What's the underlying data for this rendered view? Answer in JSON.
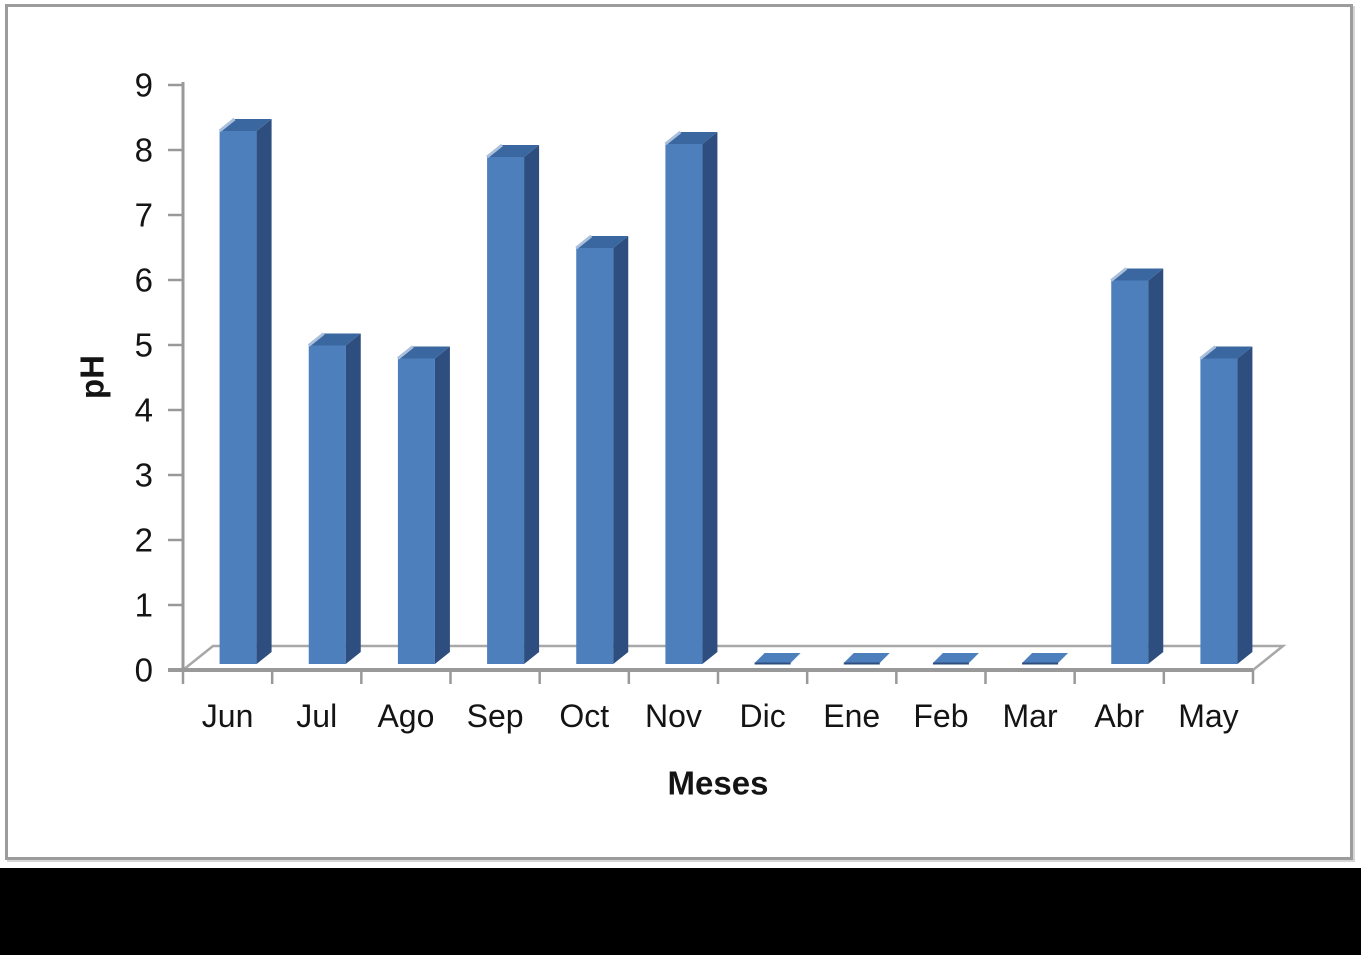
{
  "page": {
    "background_color": "#ffffff",
    "bottom_bar_color": "#000000",
    "frame_border_color": "#9c9c9c"
  },
  "chart_data": {
    "type": "bar",
    "style": "3d-column",
    "title": "",
    "xlabel": "Meses",
    "ylabel": "pH",
    "categories": [
      "Jun",
      "Jul",
      "Ago",
      "Sep",
      "Oct",
      "Nov",
      "Dic",
      "Ene",
      "Feb",
      "Mar",
      "Abr",
      "May"
    ],
    "values": [
      8.2,
      4.9,
      4.7,
      7.8,
      6.4,
      8.0,
      0,
      0,
      0,
      0,
      5.9,
      4.7
    ],
    "series_name": "pH",
    "ylim": [
      0,
      9
    ],
    "ytick_step": 1,
    "yticks": [
      0,
      1,
      2,
      3,
      4,
      5,
      6,
      7,
      8,
      9
    ],
    "grid": false,
    "legend": "none",
    "colors": {
      "bar_front": "#4d7fbd",
      "bar_side": "#2d4e7e",
      "bar_top": "#3a67a0",
      "bar_top_highlight": "#a9bfdc",
      "axis_line": "#999999",
      "floor_line": "#a8a8a8",
      "text": "#141414"
    }
  }
}
